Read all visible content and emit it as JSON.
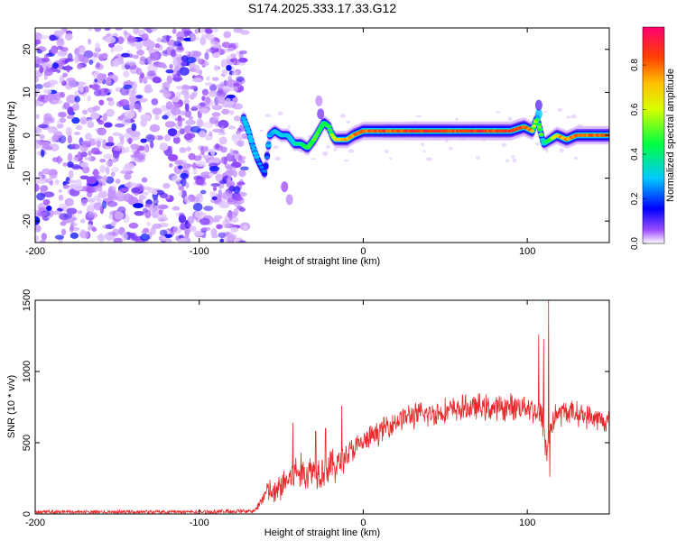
{
  "title": "S174.2025.333.17.33.G12",
  "chart_data": [
    {
      "type": "heatmap",
      "xlabel": "Height of straight line (km)",
      "ylabel": "Frequency (Hz)",
      "xlim": [
        -200,
        150
      ],
      "ylim": [
        -25,
        25
      ],
      "x_ticks": [
        -200,
        -100,
        0,
        100
      ],
      "y_ticks": [
        -20,
        -10,
        0,
        10,
        20
      ],
      "colorbar": {
        "label": "Normalized spectral amplitude",
        "range": [
          0,
          0.97
        ],
        "ticks": [
          0.0,
          0.2,
          0.4,
          0.6,
          0.8
        ]
      },
      "signal_ridge": {
        "x": [
          -73,
          -70,
          -67,
          -64,
          -60,
          -57,
          -54,
          -50,
          -46,
          -42,
          -38,
          -34,
          -30,
          -27,
          -24,
          -21,
          -19,
          -17,
          -14,
          -10,
          -6,
          0,
          10,
          20,
          30,
          40,
          50,
          60,
          70,
          80,
          90,
          98,
          103,
          106,
          108,
          110,
          114,
          118,
          124,
          130,
          140,
          150
        ],
        "freq": [
          4,
          1,
          -3,
          -6,
          -9,
          0,
          1,
          0,
          0,
          -2,
          -2,
          -3,
          -1,
          1,
          3,
          2,
          0,
          -1,
          -1,
          -1,
          0,
          1,
          1,
          1,
          1,
          1,
          1,
          1,
          1,
          1,
          1,
          2,
          1,
          4,
          1,
          -2,
          -1,
          0,
          -1,
          0,
          0,
          0
        ],
        "amplitude": [
          0.3,
          0.35,
          0.3,
          0.28,
          0.25,
          0.3,
          0.35,
          0.35,
          0.35,
          0.4,
          0.45,
          0.5,
          0.55,
          0.55,
          0.45,
          0.5,
          0.6,
          0.7,
          0.75,
          0.8,
          0.85,
          0.9,
          0.9,
          0.92,
          0.95,
          0.95,
          0.95,
          0.93,
          0.95,
          0.95,
          0.95,
          0.95,
          0.85,
          0.5,
          0.6,
          0.35,
          0.55,
          0.8,
          0.85,
          0.9,
          0.9,
          0.9
        ]
      },
      "noise_region_x": [
        -200,
        -72
      ]
    },
    {
      "type": "line",
      "series_name": "SNR",
      "xlabel": "Height of straight line (km)",
      "ylabel": "SNR (10 * v/v)",
      "xlim": [
        -200,
        150
      ],
      "ylim": [
        0,
        1500
      ],
      "x_ticks": [
        -200,
        -100,
        0,
        100
      ],
      "y_ticks": [
        0,
        500,
        1000,
        1500
      ],
      "color": "#e8282a",
      "envelope": {
        "x": [
          -200,
          -100,
          -66,
          -62,
          -58,
          -54,
          -50,
          -45,
          -40,
          -35,
          -30,
          -25,
          -20,
          -15,
          -10,
          -5,
          0,
          5,
          10,
          15,
          20,
          25,
          30,
          40,
          50,
          60,
          70,
          80,
          90,
          100,
          105,
          110,
          112,
          114,
          118,
          125,
          135,
          145,
          150
        ],
        "mean": [
          15,
          15,
          20,
          100,
          170,
          130,
          200,
          250,
          300,
          280,
          320,
          310,
          330,
          350,
          420,
          460,
          500,
          540,
          580,
          620,
          650,
          680,
          690,
          700,
          720,
          740,
          750,
          740,
          750,
          760,
          720,
          650,
          400,
          620,
          700,
          720,
          690,
          660,
          640
        ],
        "jitter": [
          10,
          12,
          15,
          60,
          100,
          110,
          140,
          150,
          160,
          150,
          160,
          160,
          160,
          140,
          120,
          110,
          100,
          100,
          100,
          100,
          100,
          100,
          110,
          110,
          110,
          110,
          110,
          110,
          110,
          110,
          120,
          160,
          180,
          140,
          110,
          100,
          100,
          100,
          100
        ]
      },
      "spikes": [
        {
          "x": -57,
          "y": 240
        },
        {
          "x": -43,
          "y": 640
        },
        {
          "x": -29,
          "y": 580
        },
        {
          "x": -23,
          "y": 600
        },
        {
          "x": -13,
          "y": 760
        },
        {
          "x": 107,
          "y": 1260
        },
        {
          "x": 110,
          "y": 1230
        },
        {
          "x": 113,
          "y": 1500
        },
        {
          "x": 113.8,
          "y": 260
        }
      ],
      "points": 1400
    }
  ]
}
